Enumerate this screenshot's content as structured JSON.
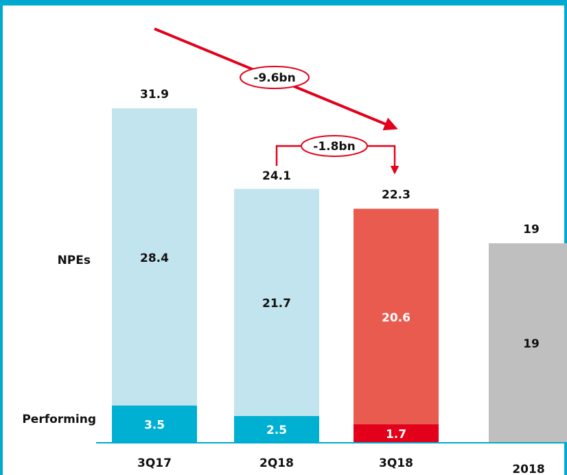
{
  "chart_data": {
    "type": "bar",
    "stacked": true,
    "categories": [
      "3Q17",
      "2Q18",
      "3Q18",
      "2018"
    ],
    "series": [
      {
        "name": "Performing",
        "values": [
          3.5,
          2.5,
          1.7,
          0
        ],
        "colors": [
          "#00b0d2",
          "#00b0d2",
          "#e2001a",
          "#9a9a9a"
        ]
      },
      {
        "name": "NPEs",
        "values": [
          28.4,
          21.7,
          20.6,
          19
        ],
        "colors": [
          "#c2e4ee",
          "#c2e4ee",
          "#e95b4e",
          "#bfbfbf"
        ]
      }
    ],
    "totals": [
      31.9,
      24.1,
      22.3,
      19
    ],
    "annotations": [
      "-9.6bn",
      "-1.8bn"
    ]
  }
}
